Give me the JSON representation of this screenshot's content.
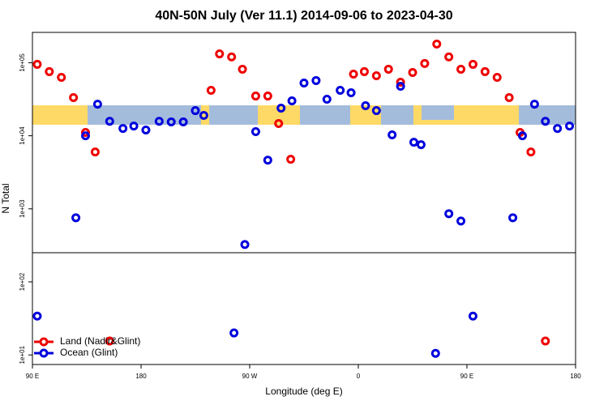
{
  "chart_data": {
    "type": "scatter",
    "title": "40N-50N July (Ver 11.1)   2014-09-06 to 2023-04-30",
    "x_label": "Longitude (deg E)",
    "y_label": "N Total",
    "xlim": [
      -270,
      180
    ],
    "xticks": [
      {
        "value": -270,
        "label": "90 E"
      },
      {
        "value": -180,
        "label": "180"
      },
      {
        "value": -90,
        "label": "90 W"
      },
      0,
      {
        "value": 90,
        "label": "90 E"
      },
      180
    ],
    "ylim": [
      7.4,
      260000
    ],
    "ylog": true,
    "yticks": [
      {
        "value": 10,
        "label": "1e+01"
      },
      {
        "value": 100,
        "label": "1e+02"
      },
      {
        "value": 1000,
        "label": "1e+03"
      },
      {
        "value": 10000,
        "label": "1e+04"
      },
      {
        "value": 100000,
        "label": "1e+05"
      }
    ],
    "legend": "bottom-left",
    "series": [
      {
        "name": "Land (Nadir&Glint)",
        "color": "#ee0000",
        "x": [
          -266,
          -256,
          -246,
          -236,
          -226,
          -218,
          -206,
          -122,
          -115,
          -105,
          -96,
          -85,
          -75,
          -66,
          -56,
          -4,
          5,
          15,
          25,
          35,
          45,
          55,
          65,
          75,
          85,
          95,
          105,
          115,
          125,
          134,
          143,
          155
        ],
        "values": [
          95000,
          75500,
          63000,
          33300,
          11100,
          6000,
          15.5,
          41900,
          132000,
          120000,
          81500,
          35000,
          35000,
          14700,
          4770,
          69800,
          75500,
          66400,
          81500,
          54100,
          73500,
          97500,
          180000,
          120000,
          81500,
          95000,
          75500,
          63000,
          33300,
          11100,
          6000,
          15.5
        ]
      },
      {
        "name": "Ocean (Glint)",
        "color": "#0000dd",
        "x": [
          -266,
          -234,
          -226,
          -216,
          -206,
          -195,
          -186,
          -176,
          -165,
          -155,
          -145,
          -135,
          -128,
          -103,
          -94,
          -85,
          -75,
          -64,
          -55,
          -45,
          -35,
          -26,
          -15,
          -6,
          6,
          15,
          28,
          35,
          46,
          52,
          64,
          75,
          85,
          95,
          128,
          136,
          146,
          155,
          165,
          175
        ],
        "values": [
          34,
          755,
          10000,
          27100,
          15800,
          12600,
          13600,
          12000,
          15800,
          15500,
          15500,
          22100,
          19000,
          20,
          325,
          11400,
          4640,
          23900,
          30100,
          52700,
          57000,
          31600,
          41900,
          38800,
          25800,
          22100,
          10300,
          47600,
          8150,
          7550,
          10.5,
          858,
          681,
          34,
          755,
          10000,
          27100,
          15800,
          12600,
          13600
        ]
      }
    ]
  }
}
